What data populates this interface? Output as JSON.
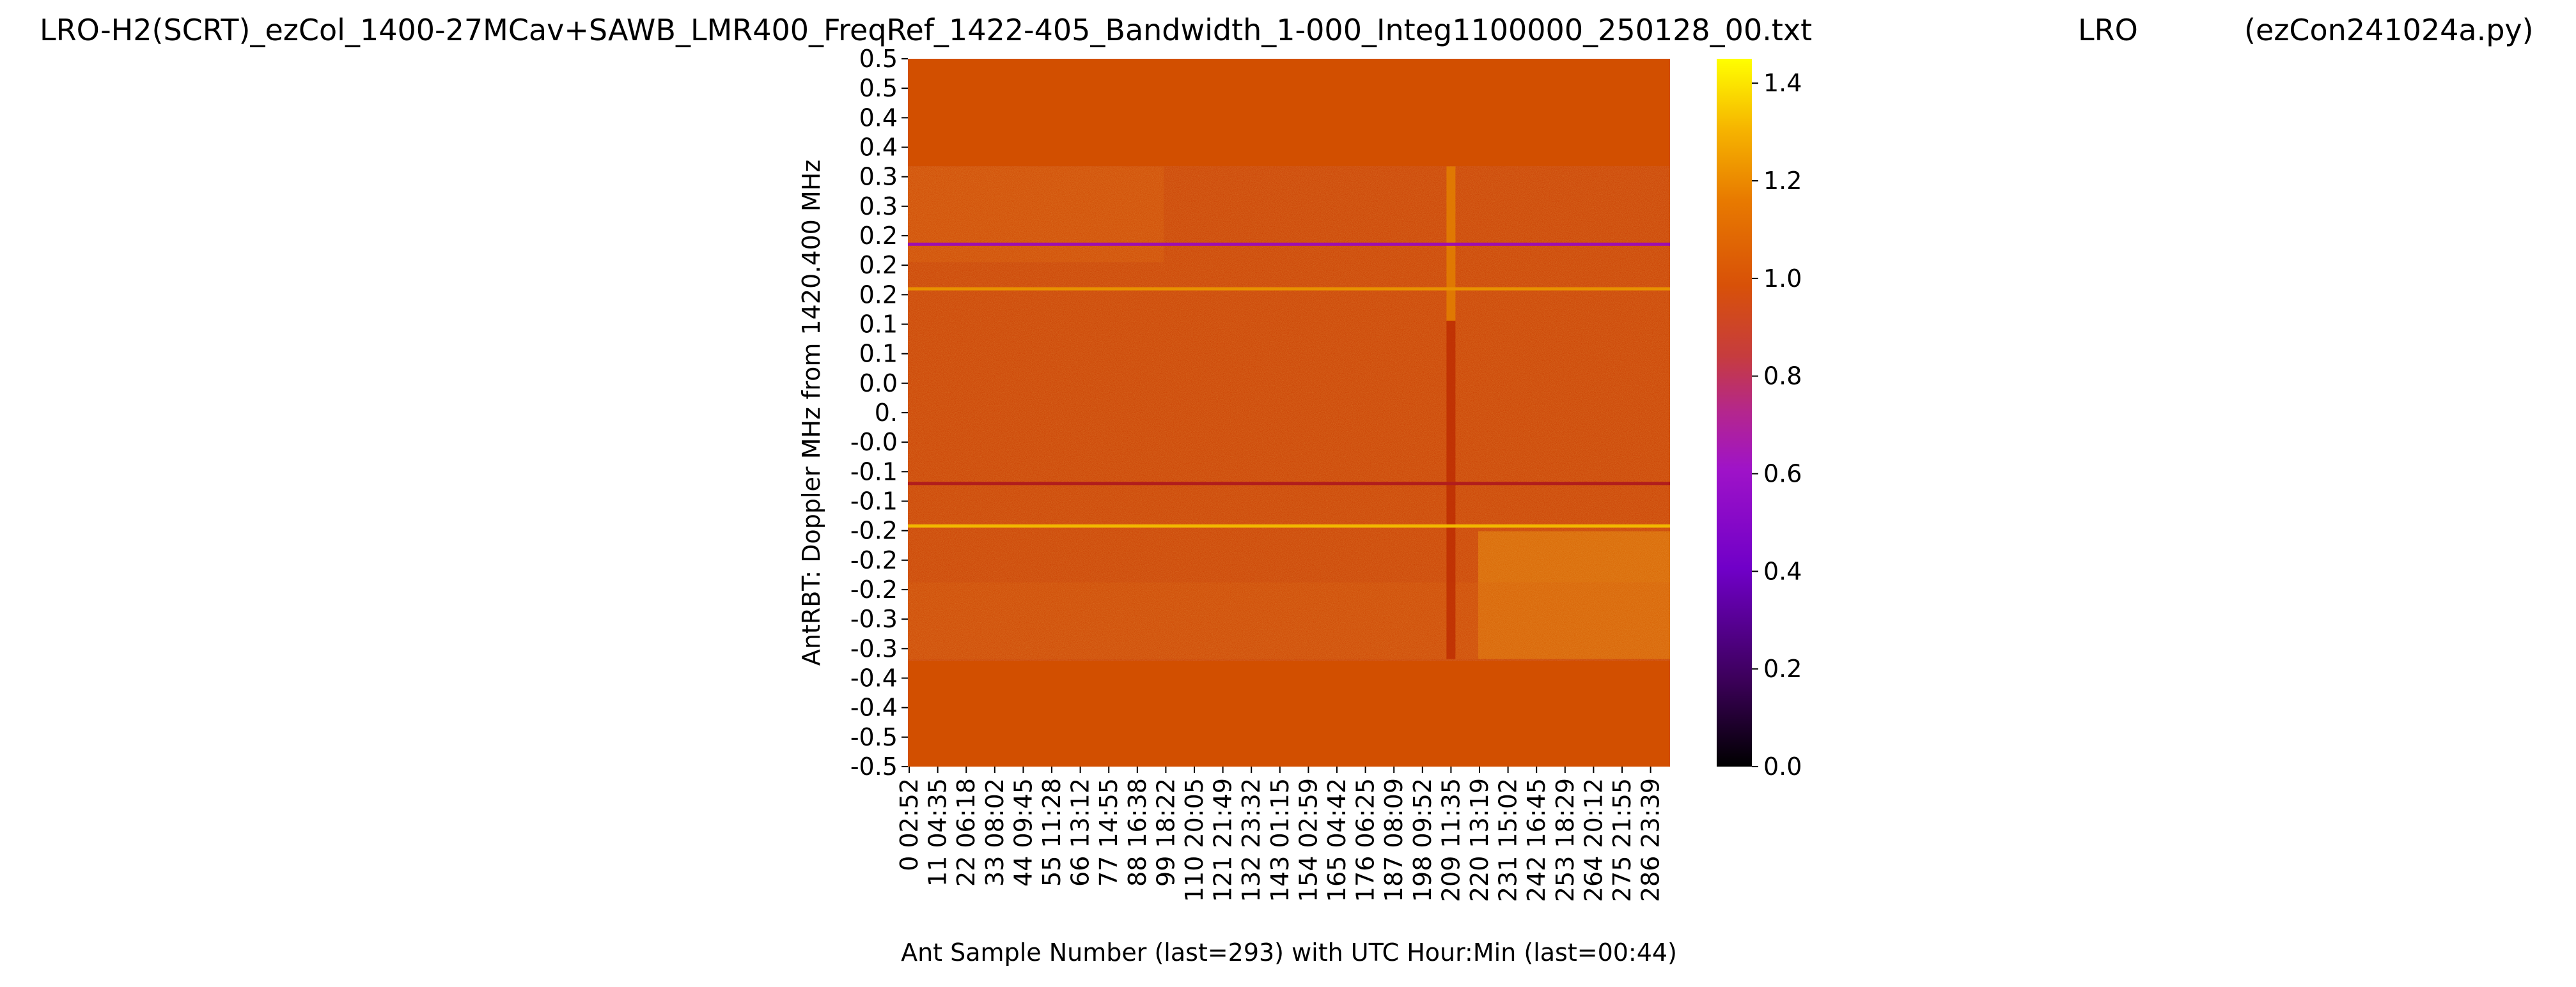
{
  "chart_data": {
    "type": "heatmap",
    "title_parts": [
      "LRO-H2(SCRT)_ezCol_1400-27MCav+SAWB_LMR400_FreqRef_1422-405_Bandwidth_1-000_Integ1100000_250128_00.txt",
      "LRO",
      "(ezCon241024a.py)"
    ],
    "xlabel": "Ant Sample Number (last=293) with UTC Hour:Min (last=00:44)",
    "ylabel": "AntRBT:  Doppler MHz from 1420.400 MHz",
    "x_tick_labels": [
      "0  02:52",
      "11  04:35",
      "22  06:18",
      "33  08:02",
      "44  09:45",
      "55  11:28",
      "66  13:12",
      "77  14:55",
      "88  16:38",
      "99  18:22",
      "110  20:05",
      "121  21:49",
      "132  23:32",
      "143  01:15",
      "154  02:59",
      "165  04:42",
      "176  06:25",
      "187  08:09",
      "198  09:52",
      "209  11:35",
      "220  13:19",
      "231  15:02",
      "242  16:45",
      "253  18:29",
      "264  20:12",
      "275  21:55",
      "286  23:39"
    ],
    "y_tick_labels": [
      "0.5",
      "0.5",
      "0.4",
      "0.4",
      "0.3",
      "0.3",
      "0.2",
      "0.2",
      "0.2",
      "0.1",
      "0.1",
      "0.0",
      "0.",
      "-0.0",
      "-0.1",
      "-0.1",
      "-0.2",
      "-0.2",
      "-0.2",
      "-0.3",
      "-0.3",
      "-0.4",
      "-0.4",
      "-0.5",
      "-0.5"
    ],
    "sample_count": 294,
    "colorbar": {
      "colormap": "gnuplot",
      "vmin": 0.0,
      "vmax": 1.45,
      "ticks": [
        "0.0",
        "0.2",
        "0.4",
        "0.6",
        "0.8",
        "1.0",
        "1.2",
        "1.4"
      ],
      "tick_values": [
        0.0,
        0.2,
        0.4,
        0.6,
        0.8,
        1.0,
        1.2,
        1.4
      ]
    },
    "y_range_mhz": [
      0.5,
      -0.5
    ],
    "masked_value": 0.98,
    "data_band_mhz": [
      0.348,
      -0.348
    ],
    "baseline_value": 0.9,
    "horizontal_features": [
      {
        "doppler_mhz": 0.238,
        "value": 0.55
      },
      {
        "doppler_mhz": 0.175,
        "value": 1.2
      },
      {
        "doppler_mhz": -0.1,
        "value": 0.7
      },
      {
        "doppler_mhz": -0.16,
        "value": 1.3
      }
    ],
    "vertical_features": [
      {
        "sample": 209,
        "value_top": 1.15,
        "value_bottom": 0.78
      }
    ]
  }
}
